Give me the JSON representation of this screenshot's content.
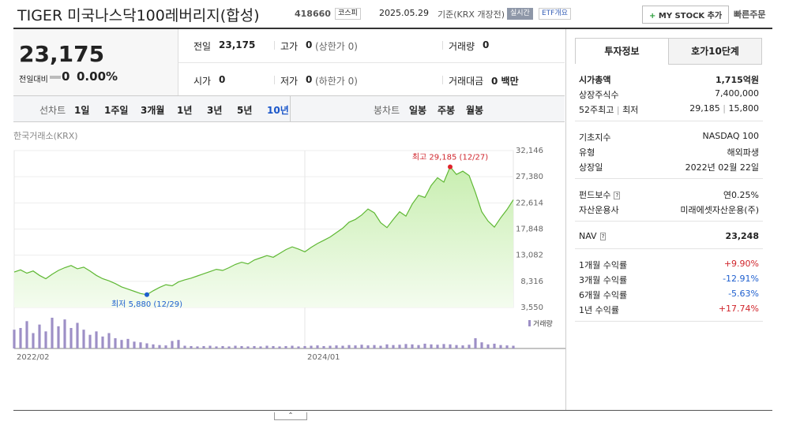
{
  "header": {
    "title": "TIGER 미국나스닥100레버리지(합성)",
    "code": "418660",
    "market": "코스피",
    "date": "2025.05.29",
    "basis": "기준(KRX 개장전)",
    "realtime": "실시간",
    "etf_info": "ETF개요",
    "my_stock": "MY STOCK 추가",
    "quick_order": "빠른주문"
  },
  "quote": {
    "price": "23,175",
    "change_label": "전일대비",
    "change": "0",
    "change_pct": "0.00%"
  },
  "summary": [
    {
      "label": "전일",
      "value": "23,175"
    },
    {
      "label": "고가",
      "value": "0",
      "note": "(상한가 0)"
    },
    {
      "label": "거래량",
      "value": "0"
    },
    {
      "label": "시가",
      "value": "0"
    },
    {
      "label": "저가",
      "value": "0",
      "note": "(하한가 0)"
    },
    {
      "label": "거래대금",
      "value": "0 백만"
    }
  ],
  "periods": {
    "label": "선차트",
    "items": [
      "1일",
      "1주일",
      "3개월",
      "1년",
      "3년",
      "5년",
      "10년"
    ],
    "active": 6
  },
  "candles": {
    "label": "봉차트",
    "items": [
      "일봉",
      "주봉",
      "월봉"
    ]
  },
  "chart": {
    "type": "line",
    "source": "한국거래소(KRX)",
    "color": "#5fb834",
    "categories": [
      "2022/02",
      null,
      null,
      null,
      null,
      null,
      null,
      null,
      null,
      null,
      null,
      null,
      null,
      null,
      null,
      null,
      null,
      null,
      null,
      null,
      null,
      null,
      null,
      null,
      null,
      null,
      null,
      null,
      null,
      null,
      null,
      null,
      null,
      null,
      null,
      null,
      null,
      null,
      null,
      null,
      null,
      null,
      null,
      null,
      null,
      null,
      "2024/01",
      null,
      null,
      null,
      null,
      null,
      null,
      null,
      null,
      null,
      null,
      null,
      null,
      null,
      null,
      null,
      null,
      null,
      null,
      null,
      null,
      null,
      null,
      null,
      null,
      null,
      null,
      null,
      null,
      null,
      null,
      null,
      null,
      null
    ],
    "values": [
      10000,
      10400,
      9800,
      10200,
      9400,
      8800,
      9600,
      10300,
      10800,
      11200,
      10600,
      10900,
      10200,
      9400,
      8800,
      8400,
      7900,
      7300,
      6900,
      6500,
      6100,
      5880,
      6600,
      7200,
      7700,
      7500,
      8200,
      8600,
      8900,
      9300,
      9700,
      10100,
      10500,
      10300,
      10800,
      11400,
      11800,
      11500,
      12200,
      12600,
      13000,
      12700,
      13400,
      14100,
      14600,
      14200,
      13700,
      14500,
      15200,
      15800,
      16400,
      17200,
      18000,
      19100,
      19600,
      20400,
      21500,
      20800,
      19000,
      18100,
      19600,
      21000,
      20200,
      22400,
      24000,
      23600,
      25800,
      27200,
      26400,
      29185,
      27800,
      28400,
      27600,
      24500,
      21000,
      19300,
      18200,
      19900,
      21400,
      23175
    ],
    "ylim": [
      3550,
      32146
    ],
    "yticks": [
      {
        "value": 3550,
        "label": "3,550"
      },
      {
        "value": 8316,
        "label": "8,316"
      },
      {
        "value": 13082,
        "label": "13,082"
      },
      {
        "value": 17848,
        "label": "17,848"
      },
      {
        "value": 22614,
        "label": "22,614"
      },
      {
        "value": 27380,
        "label": "27,380"
      },
      {
        "value": 32146,
        "label": "32,146"
      }
    ],
    "max_label": "최고 29,185 (12/27)",
    "min_label": "최저 5,880 (12/29)",
    "volume_label": "거래량",
    "volume_color": "#9d8fc6",
    "volume": [
      55,
      60,
      80,
      45,
      70,
      50,
      90,
      65,
      85,
      60,
      75,
      55,
      40,
      50,
      35,
      45,
      30,
      25,
      28,
      20,
      18,
      15,
      12,
      10,
      9,
      22,
      25,
      8,
      7,
      6,
      7,
      8,
      6,
      7,
      6,
      8,
      7,
      6,
      7,
      6,
      8,
      7,
      6,
      7,
      8,
      6,
      7,
      8,
      9,
      7,
      8,
      9,
      8,
      10,
      9,
      11,
      9,
      10,
      8,
      12,
      10,
      11,
      13,
      12,
      10,
      14,
      12,
      11,
      13,
      12,
      10,
      9,
      11,
      30,
      18,
      12,
      14,
      10,
      9,
      8
    ]
  },
  "info": {
    "tabs": [
      "투자정보",
      "호가10단계"
    ],
    "groups": [
      [
        {
          "label": "시가총액",
          "value": "1,715억원"
        },
        {
          "label": "상장주식수",
          "value": "7,400,000"
        },
        {
          "label": "52주최고",
          "label2": "최저",
          "value": "29,185",
          "value2": "15,800"
        }
      ],
      [
        {
          "label": "기초지수",
          "value": "NASDAQ 100"
        },
        {
          "label": "유형",
          "value": "해외파생"
        },
        {
          "label": "상장일",
          "value": "2022년 02월 22일"
        }
      ],
      [
        {
          "label": "펀드보수",
          "value": "연0.25%"
        },
        {
          "label": "자산운용사",
          "value": "미래에셋자산운용(주)"
        }
      ],
      [
        {
          "label": "NAV",
          "value": "23,248"
        }
      ],
      [
        {
          "label": "1개월 수익률",
          "value": "+9.90%"
        },
        {
          "label": "3개월 수익률",
          "value": "-12.91%"
        },
        {
          "label": "6개월 수익률",
          "value": "-5.63%"
        },
        {
          "label": "1년 수익률",
          "value": "+17.74%"
        }
      ]
    ]
  }
}
